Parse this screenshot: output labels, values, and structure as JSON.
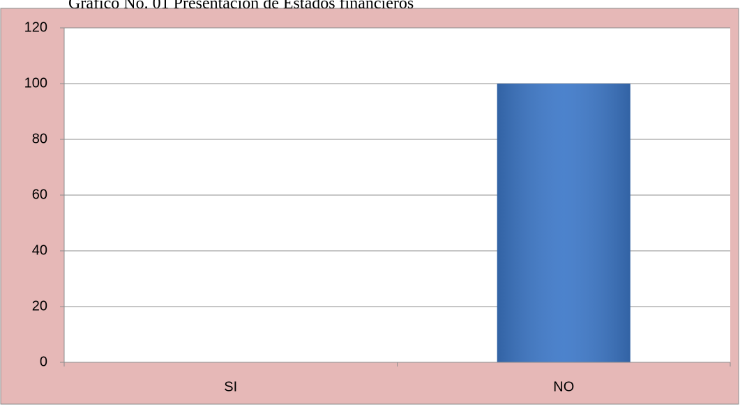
{
  "chart_data": {
    "type": "bar",
    "title": "Gráfico No. 01 Presentación de Estados financieros",
    "categories": [
      "SI",
      "NO"
    ],
    "values": [
      0,
      100
    ],
    "color": "#3d78c8",
    "ylim": [
      0,
      120
    ],
    "yticks": [
      0,
      20,
      40,
      60,
      80,
      100,
      120
    ],
    "grid": true
  }
}
